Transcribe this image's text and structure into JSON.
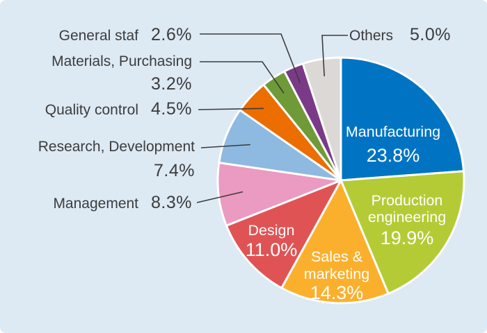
{
  "colors": {
    "background": "#dde9f3",
    "text": "#3c3c3c",
    "leader_line": "#3c3c3c",
    "slice_border": "#ffffff",
    "inside_label_text": "#ffffff"
  },
  "chart_data": {
    "type": "pie",
    "title": "",
    "start_angle_deg": 0,
    "direction": "clockwise",
    "unit": "%",
    "slices": [
      {
        "key": "manufacturing",
        "label": "Manufacturing",
        "label_lines": [
          "Manufacturing"
        ],
        "value": 23.8,
        "display": "23.8%",
        "color": "#0074c2",
        "label_placement": "inside"
      },
      {
        "key": "production-engineering",
        "label": "Production engineering",
        "label_lines": [
          "Production",
          "engineering"
        ],
        "value": 19.9,
        "display": "19.9%",
        "color": "#b4cb35",
        "label_placement": "inside"
      },
      {
        "key": "sales-marketing",
        "label": "Sales & marketing",
        "label_lines": [
          "Sales &",
          "marketing"
        ],
        "value": 14.3,
        "display": "14.3%",
        "color": "#fbb02d",
        "label_placement": "inside"
      },
      {
        "key": "design",
        "label": "Design",
        "label_lines": [
          "Design"
        ],
        "value": 11.0,
        "display": "11.0%",
        "color": "#e05354",
        "label_placement": "inside"
      },
      {
        "key": "management",
        "label": "Management",
        "value": 8.3,
        "display": "8.3%",
        "color": "#eb9ac1",
        "label_placement": "outside"
      },
      {
        "key": "research-development",
        "label": "Research, Development",
        "value": 7.4,
        "display": "7.4%",
        "color": "#8eb9e1",
        "label_placement": "outside"
      },
      {
        "key": "quality-control",
        "label": "Quality control",
        "value": 4.5,
        "display": "4.5%",
        "color": "#ec6d00",
        "label_placement": "outside"
      },
      {
        "key": "materials-purchasing",
        "label": "Materials, Purchasing",
        "value": 3.2,
        "display": "3.2%",
        "color": "#6f9a38",
        "label_placement": "outside"
      },
      {
        "key": "general-staf",
        "label": "General staf",
        "value": 2.6,
        "display": "2.6%",
        "color": "#7b3a88",
        "label_placement": "outside"
      },
      {
        "key": "others",
        "label": "Others",
        "value": 5.0,
        "display": "5.0%",
        "color": "#dcd8d6",
        "label_placement": "outside"
      }
    ]
  }
}
